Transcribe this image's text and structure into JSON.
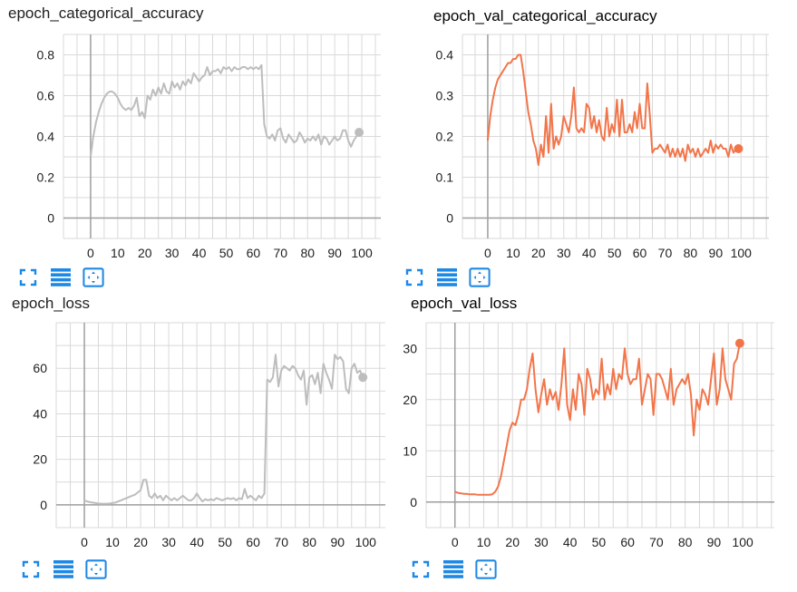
{
  "colors": {
    "train": "#bdbdbd",
    "val": "#f2754a",
    "grid": "#d9d9d9",
    "axis": "#9e9e9e",
    "icon": "#1e88e5"
  },
  "chart_data": [
    {
      "type": "line",
      "title": "epoch_categorical_accuracy",
      "color": "#bdbdbd",
      "xlim": [
        -10,
        107
      ],
      "ylim": [
        -0.1,
        0.9
      ],
      "xticks": [
        0,
        10,
        20,
        30,
        40,
        50,
        60,
        70,
        80,
        90,
        100
      ],
      "yticks": [
        0,
        0.2,
        0.4,
        0.6,
        0.8
      ],
      "ytick_labels": [
        "0",
        "0.2",
        "0.4",
        "0.6",
        "0.8"
      ],
      "series": [
        {
          "x": [
            0,
            1,
            2,
            3,
            4,
            5,
            6,
            7,
            8,
            9,
            10,
            11,
            12,
            13,
            14,
            15,
            16,
            17,
            18,
            19,
            20,
            21,
            22,
            23,
            24,
            25,
            26,
            27,
            28,
            29,
            30,
            31,
            32,
            33,
            34,
            35,
            36,
            37,
            38,
            39,
            40,
            41,
            42,
            43,
            44,
            45,
            46,
            47,
            48,
            49,
            50,
            51,
            52,
            53,
            54,
            55,
            56,
            57,
            58,
            59,
            60,
            61,
            62,
            63,
            64,
            65,
            66,
            67,
            68,
            69,
            70,
            71,
            72,
            73,
            74,
            75,
            76,
            77,
            78,
            79,
            80,
            81,
            82,
            83,
            84,
            85,
            86,
            87,
            88,
            89,
            90,
            91,
            92,
            93,
            94,
            95,
            96,
            97,
            98,
            99
          ],
          "y": [
            0.3,
            0.4,
            0.47,
            0.52,
            0.56,
            0.59,
            0.61,
            0.62,
            0.62,
            0.61,
            0.59,
            0.56,
            0.54,
            0.53,
            0.54,
            0.53,
            0.55,
            0.59,
            0.5,
            0.52,
            0.49,
            0.6,
            0.58,
            0.63,
            0.6,
            0.64,
            0.61,
            0.66,
            0.62,
            0.61,
            0.67,
            0.64,
            0.66,
            0.63,
            0.67,
            0.65,
            0.68,
            0.66,
            0.71,
            0.69,
            0.67,
            0.69,
            0.7,
            0.74,
            0.7,
            0.72,
            0.72,
            0.73,
            0.71,
            0.74,
            0.73,
            0.74,
            0.72,
            0.74,
            0.73,
            0.73,
            0.74,
            0.74,
            0.73,
            0.74,
            0.73,
            0.74,
            0.73,
            0.75,
            0.46,
            0.4,
            0.39,
            0.41,
            0.38,
            0.43,
            0.44,
            0.39,
            0.37,
            0.41,
            0.39,
            0.37,
            0.38,
            0.42,
            0.4,
            0.37,
            0.39,
            0.38,
            0.4,
            0.38,
            0.41,
            0.36,
            0.4,
            0.39,
            0.36,
            0.38,
            0.4,
            0.38,
            0.39,
            0.43,
            0.43,
            0.38,
            0.35,
            0.38,
            0.4,
            0.42
          ]
        }
      ]
    },
    {
      "type": "line",
      "title": "epoch_val_categorical_accuracy",
      "color": "#f2754a",
      "xlim": [
        -10,
        111
      ],
      "ylim": [
        -0.05,
        0.45
      ],
      "xticks": [
        0,
        10,
        20,
        30,
        40,
        50,
        60,
        70,
        80,
        90,
        100
      ],
      "yticks": [
        0,
        0.1,
        0.2,
        0.3,
        0.4
      ],
      "ytick_labels": [
        "0",
        "0.1",
        "0.2",
        "0.3",
        "0.4"
      ],
      "series": [
        {
          "x": [
            0,
            1,
            2,
            3,
            4,
            5,
            6,
            7,
            8,
            9,
            10,
            11,
            12,
            13,
            14,
            15,
            16,
            17,
            18,
            19,
            20,
            21,
            22,
            23,
            24,
            25,
            26,
            27,
            28,
            29,
            30,
            31,
            32,
            33,
            34,
            35,
            36,
            37,
            38,
            39,
            40,
            41,
            42,
            43,
            44,
            45,
            46,
            47,
            48,
            49,
            50,
            51,
            52,
            53,
            54,
            55,
            56,
            57,
            58,
            59,
            60,
            61,
            62,
            63,
            64,
            65,
            66,
            67,
            68,
            69,
            70,
            71,
            72,
            73,
            74,
            75,
            76,
            77,
            78,
            79,
            80,
            81,
            82,
            83,
            84,
            85,
            86,
            87,
            88,
            89,
            90,
            91,
            92,
            93,
            94,
            95,
            96,
            97,
            98,
            99
          ],
          "y": [
            0.19,
            0.25,
            0.29,
            0.32,
            0.34,
            0.35,
            0.36,
            0.37,
            0.38,
            0.38,
            0.39,
            0.39,
            0.4,
            0.4,
            0.36,
            0.31,
            0.26,
            0.23,
            0.19,
            0.17,
            0.13,
            0.18,
            0.15,
            0.25,
            0.16,
            0.28,
            0.17,
            0.2,
            0.18,
            0.2,
            0.25,
            0.23,
            0.21,
            0.25,
            0.32,
            0.22,
            0.21,
            0.22,
            0.21,
            0.28,
            0.27,
            0.22,
            0.25,
            0.21,
            0.24,
            0.2,
            0.19,
            0.27,
            0.2,
            0.23,
            0.21,
            0.29,
            0.2,
            0.29,
            0.21,
            0.21,
            0.23,
            0.21,
            0.26,
            0.22,
            0.28,
            0.22,
            0.22,
            0.33,
            0.25,
            0.16,
            0.17,
            0.17,
            0.18,
            0.17,
            0.16,
            0.18,
            0.15,
            0.17,
            0.15,
            0.17,
            0.15,
            0.17,
            0.14,
            0.18,
            0.16,
            0.17,
            0.15,
            0.17,
            0.15,
            0.16,
            0.17,
            0.16,
            0.19,
            0.16,
            0.18,
            0.17,
            0.18,
            0.17,
            0.17,
            0.15,
            0.18,
            0.16,
            0.17,
            0.17
          ]
        }
      ]
    },
    {
      "type": "line",
      "title": "epoch_loss",
      "color": "#bdbdbd",
      "xlim": [
        -10,
        107
      ],
      "ylim": [
        -10,
        80
      ],
      "xticks": [
        0,
        10,
        20,
        30,
        40,
        50,
        60,
        70,
        80,
        90,
        100
      ],
      "yticks": [
        0,
        20,
        40,
        60
      ],
      "ytick_labels": [
        "0",
        "20",
        "40",
        "60"
      ],
      "series": [
        {
          "x": [
            0,
            1,
            2,
            3,
            4,
            5,
            6,
            7,
            8,
            9,
            10,
            11,
            12,
            13,
            14,
            15,
            16,
            17,
            18,
            19,
            20,
            21,
            22,
            23,
            24,
            25,
            26,
            27,
            28,
            29,
            30,
            31,
            32,
            33,
            34,
            35,
            36,
            37,
            38,
            39,
            40,
            41,
            42,
            43,
            44,
            45,
            46,
            47,
            48,
            49,
            50,
            51,
            52,
            53,
            54,
            55,
            56,
            57,
            58,
            59,
            60,
            61,
            62,
            63,
            64,
            65,
            66,
            67,
            68,
            69,
            70,
            71,
            72,
            73,
            74,
            75,
            76,
            77,
            78,
            79,
            80,
            81,
            82,
            83,
            84,
            85,
            86,
            87,
            88,
            89,
            90,
            91,
            92,
            93,
            94,
            95,
            96,
            97,
            98,
            99
          ],
          "y": [
            2.0,
            1.5,
            1.2,
            1.0,
            0.8,
            0.6,
            0.5,
            0.5,
            0.5,
            0.6,
            0.8,
            1.0,
            1.5,
            2.0,
            2.5,
            3.0,
            3.5,
            4.0,
            4.5,
            5.5,
            6.5,
            11,
            11,
            4,
            3,
            5,
            3,
            4,
            2,
            4,
            3,
            2,
            3,
            2,
            3,
            4,
            3,
            2,
            2,
            3,
            5,
            3,
            1.5,
            2.5,
            2,
            2.5,
            2,
            3,
            2.5,
            2,
            2.5,
            3,
            2.5,
            3,
            2,
            3,
            2.5,
            7,
            3,
            4,
            3,
            2,
            4,
            3,
            5,
            55,
            54,
            56,
            66,
            52,
            59,
            61,
            60,
            59,
            61,
            60,
            57,
            55,
            59,
            44,
            56,
            57,
            53,
            58,
            49,
            62,
            58,
            55,
            51,
            66,
            64,
            65,
            63,
            51,
            49,
            60,
            62,
            58,
            59,
            56
          ]
        }
      ]
    },
    {
      "type": "line",
      "title": "epoch_val_loss",
      "color": "#f2754a",
      "xlim": [
        -10,
        111
      ],
      "ylim": [
        -5,
        35
      ],
      "xticks": [
        0,
        10,
        20,
        30,
        40,
        50,
        60,
        70,
        80,
        90,
        100
      ],
      "yticks": [
        0,
        10,
        20,
        30
      ],
      "ytick_labels": [
        "0",
        "10",
        "20",
        "30"
      ],
      "series": [
        {
          "x": [
            0,
            1,
            2,
            3,
            4,
            5,
            6,
            7,
            8,
            9,
            10,
            11,
            12,
            13,
            14,
            15,
            16,
            17,
            18,
            19,
            20,
            21,
            22,
            23,
            24,
            25,
            26,
            27,
            28,
            29,
            30,
            31,
            32,
            33,
            34,
            35,
            36,
            37,
            38,
            39,
            40,
            41,
            42,
            43,
            44,
            45,
            46,
            47,
            48,
            49,
            50,
            51,
            52,
            53,
            54,
            55,
            56,
            57,
            58,
            59,
            60,
            61,
            62,
            63,
            64,
            65,
            66,
            67,
            68,
            69,
            70,
            71,
            72,
            73,
            74,
            75,
            76,
            77,
            78,
            79,
            80,
            81,
            82,
            83,
            84,
            85,
            86,
            87,
            88,
            89,
            90,
            91,
            92,
            93,
            94,
            95,
            96,
            97,
            98,
            99
          ],
          "y": [
            2.0,
            1.8,
            1.7,
            1.6,
            1.6,
            1.5,
            1.5,
            1.5,
            1.4,
            1.4,
            1.4,
            1.4,
            1.4,
            1.5,
            2.0,
            3.0,
            5.0,
            8.0,
            11.0,
            14.0,
            15.5,
            15.0,
            17.0,
            20.0,
            20.0,
            22.0,
            26.0,
            29.0,
            22.0,
            17.5,
            21.0,
            24.0,
            19.0,
            22.0,
            20.0,
            21.5,
            18.0,
            23.0,
            30.0,
            19.0,
            16.0,
            22.0,
            18.0,
            25.0,
            23.0,
            17.0,
            26.0,
            24.0,
            20.0,
            22.0,
            21.0,
            28.0,
            20.0,
            23.0,
            21.0,
            26.0,
            22.0,
            25.0,
            24.0,
            30.0,
            25.0,
            23.0,
            24.0,
            24.0,
            28.0,
            19.0,
            22.0,
            25.0,
            24.0,
            17.0,
            25.0,
            25.0,
            24.0,
            22.0,
            20.0,
            26.0,
            19.0,
            22.0,
            23.0,
            24.0,
            23.0,
            25.0,
            21.0,
            13.0,
            20.0,
            18.0,
            22.0,
            21.0,
            19.0,
            24.0,
            29.0,
            19.0,
            22.0,
            30.0,
            24.0,
            22.0,
            20.0,
            27.0,
            28.0,
            31.0
          ]
        }
      ]
    }
  ],
  "toolbar_icons": [
    "fullscreen-icon",
    "toggle-log-icon",
    "fit-domain-icon"
  ]
}
